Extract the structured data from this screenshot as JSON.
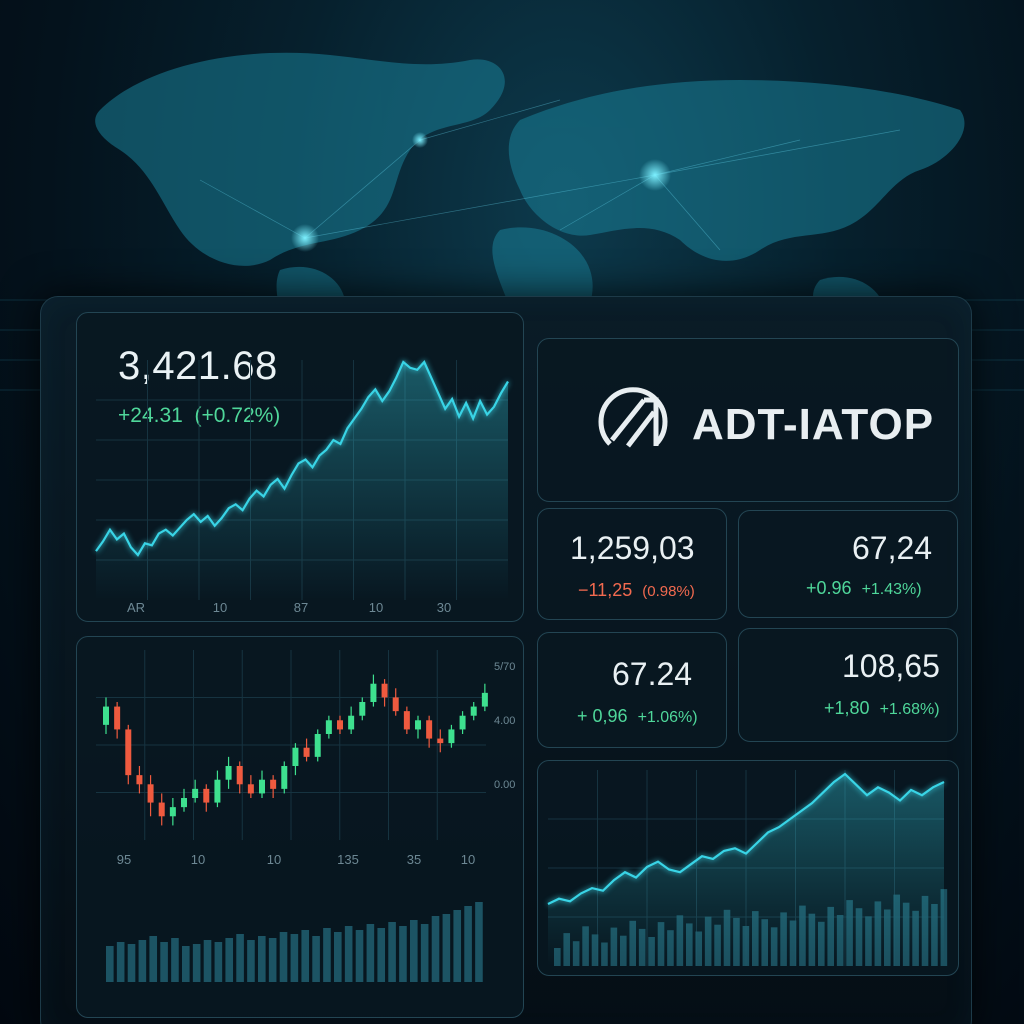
{
  "main_quote": {
    "value": "3,421.68",
    "change": "+24.31",
    "change_pct": "(+0.72%)"
  },
  "brand": {
    "name": "ADT-IATOP"
  },
  "tiles": [
    {
      "value": "1,259,03",
      "change": "−11,25",
      "change_pct": "(0.98%)",
      "direction": "down"
    },
    {
      "value": "67,24",
      "change": "+0.96",
      "change_pct": "+1.43%)",
      "direction": "up"
    },
    {
      "value": "67.24",
      "change": "+ 0,96",
      "change_pct": "+1.06%)",
      "direction": "up"
    },
    {
      "value": "108,65",
      "change": "+1,80",
      "change_pct": "+1.68%)",
      "direction": "up"
    }
  ],
  "colors": {
    "line": "#39d4e6",
    "up": "#3ee08f",
    "down": "#ef5a3f",
    "bar": "#1f5b6b",
    "panel_border": "#234553"
  },
  "chart_data": [
    {
      "type": "area",
      "x_tick_labels": [
        "AR",
        "10",
        "87",
        "10",
        "30"
      ],
      "y": [
        3,
        8,
        14,
        9,
        12,
        5,
        1,
        7,
        6,
        12,
        14,
        11,
        15,
        19,
        22,
        18,
        21,
        16,
        20,
        25,
        27,
        24,
        30,
        34,
        31,
        37,
        40,
        35,
        42,
        48,
        50,
        46,
        52,
        55,
        60,
        58,
        66,
        71,
        76,
        82,
        86,
        80,
        85,
        92,
        100,
        97,
        96,
        100,
        92,
        84,
        76,
        81,
        72,
        79,
        71,
        80,
        73,
        77,
        84,
        90
      ]
    },
    {
      "type": "candlestick",
      "x_tick_labels": [
        "95",
        "10",
        "10",
        "135",
        "35",
        "10"
      ],
      "y_tick_labels": [
        "5/70",
        "4.00",
        "0.00"
      ],
      "candles": [
        [
          62,
          70,
          58,
          74
        ],
        [
          70,
          60,
          56,
          72
        ],
        [
          60,
          40,
          36,
          62
        ],
        [
          40,
          36,
          32,
          44
        ],
        [
          36,
          28,
          22,
          40
        ],
        [
          28,
          22,
          18,
          32
        ],
        [
          22,
          26,
          18,
          30
        ],
        [
          26,
          30,
          24,
          34
        ],
        [
          30,
          34,
          28,
          38
        ],
        [
          34,
          28,
          24,
          36
        ],
        [
          28,
          38,
          26,
          42
        ],
        [
          38,
          44,
          34,
          48
        ],
        [
          44,
          36,
          32,
          46
        ],
        [
          36,
          32,
          30,
          40
        ],
        [
          32,
          38,
          30,
          42
        ],
        [
          38,
          34,
          30,
          40
        ],
        [
          34,
          44,
          32,
          46
        ],
        [
          44,
          52,
          40,
          54
        ],
        [
          52,
          48,
          46,
          56
        ],
        [
          48,
          58,
          46,
          60
        ],
        [
          58,
          64,
          56,
          66
        ],
        [
          64,
          60,
          58,
          66
        ],
        [
          60,
          66,
          58,
          70
        ],
        [
          66,
          72,
          64,
          74
        ],
        [
          72,
          80,
          70,
          84
        ],
        [
          80,
          74,
          70,
          82
        ],
        [
          74,
          68,
          66,
          78
        ],
        [
          68,
          60,
          58,
          70
        ],
        [
          60,
          64,
          56,
          66
        ],
        [
          64,
          56,
          52,
          66
        ],
        [
          56,
          54,
          50,
          60
        ],
        [
          54,
          60,
          52,
          62
        ],
        [
          60,
          66,
          58,
          68
        ],
        [
          66,
          70,
          64,
          72
        ],
        [
          70,
          76,
          68,
          80
        ]
      ],
      "volume": [
        18,
        20,
        19,
        21,
        23,
        20,
        22,
        18,
        19,
        21,
        20,
        22,
        24,
        21,
        23,
        22,
        25,
        24,
        26,
        23,
        27,
        25,
        28,
        26,
        29,
        27,
        30,
        28,
        31,
        29,
        33,
        34,
        36,
        38,
        40
      ]
    },
    {
      "type": "area",
      "y": [
        2,
        6,
        4,
        10,
        14,
        12,
        20,
        26,
        22,
        30,
        34,
        28,
        26,
        32,
        38,
        36,
        42,
        44,
        40,
        48,
        56,
        60,
        66,
        72,
        78,
        86,
        94,
        100,
        92,
        84,
        90,
        86,
        80,
        88,
        84,
        90,
        94
      ]
    }
  ]
}
